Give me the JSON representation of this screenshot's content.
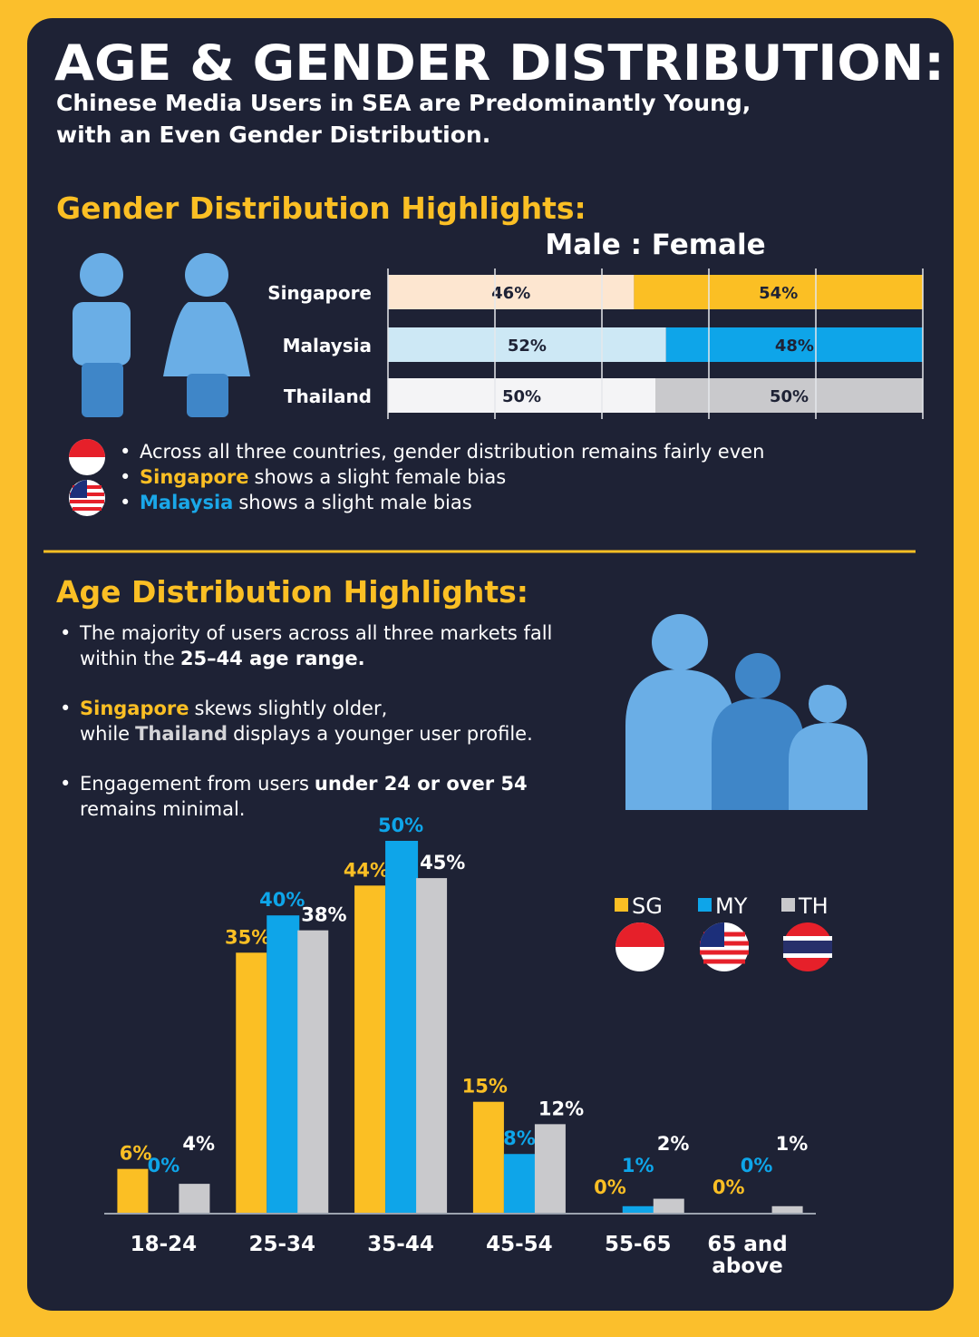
{
  "header": {
    "title": "AGE & GENDER DISTRIBUTION:",
    "subtitle": [
      "Chinese Media Users in SEA are Predominantly Young,",
      "with an Even Gender Distribution."
    ]
  },
  "gender_section": {
    "heading": "Gender Distribution Highlights:",
    "notes": [
      [
        [
          {
            "text": "Across all three countries, gender distribution remains fairly even"
          }
        ]
      ],
      [
        [
          {
            "text": "Singapore",
            "bold": true,
            "color": "#fbbf24"
          },
          {
            "text": "shows a slight female bias"
          }
        ]
      ],
      [
        [
          {
            "text": "Malaysia",
            "bold": true,
            "color": "#1aa7e8"
          },
          {
            "text": "shows a slight male bias"
          }
        ]
      ]
    ]
  },
  "age_section": {
    "heading": "Age Distribution Highlights:",
    "notes": [
      [
        [
          {
            "text": "The majority of users across all three markets fall"
          }
        ],
        [
          {
            "text": "within the"
          },
          {
            "text": "25–44 age range.",
            "bold": true
          }
        ]
      ],
      [
        [
          {
            "text": "Singapore",
            "bold": true,
            "color": "#fbbf24"
          },
          {
            "text": "skews slightly older,"
          }
        ],
        [
          {
            "text": "while"
          },
          {
            "text": "Thailand",
            "bold": true,
            "color": "#d4d4d8"
          },
          {
            "text": "displays a younger user profile."
          }
        ]
      ],
      [
        [
          {
            "text": "Engagement from users"
          },
          {
            "text": "under 24 or over 54",
            "bold": true
          }
        ],
        [
          {
            "text": "remains minimal."
          }
        ]
      ]
    ]
  },
  "chart_data": [
    {
      "type": "stacked-hbar",
      "title": "Male : Female",
      "categories": [
        "Singapore",
        "Malaysia",
        "Thailand"
      ],
      "series": [
        {
          "colors": [
            "#fde6d0",
            "#cde8f5",
            "#f4f4f6"
          ],
          "values": [
            46,
            52,
            50
          ],
          "value_labels": [
            "46%",
            "52%",
            "50%"
          ]
        },
        {
          "colors": [
            "#fbbf24",
            "#0ea5e9",
            "#c9c9cc"
          ],
          "values": [
            54,
            48,
            50
          ],
          "value_labels": [
            "54%",
            "48%",
            "50%"
          ]
        }
      ],
      "xlim": [
        0,
        100
      ],
      "xticks": [
        0,
        20,
        40,
        60,
        80,
        100
      ],
      "grid": true
    },
    {
      "type": "grouped-bar",
      "categories": [
        "18-24",
        "25-34",
        "35-44",
        "45-54",
        "55-65",
        "65 and above"
      ],
      "series": [
        {
          "name": "SG",
          "color": "#fbbf24",
          "values": [
            6,
            35,
            44,
            15,
            0,
            0
          ],
          "value_labels": [
            "6%",
            "35%",
            "44%",
            "15%",
            "0%",
            "0%"
          ]
        },
        {
          "name": "MY",
          "color": "#0ea5e9",
          "values": [
            0,
            40,
            50,
            8,
            1,
            0
          ],
          "value_labels": [
            "0%",
            "40%",
            "50%",
            "8%",
            "1%",
            "0%"
          ]
        },
        {
          "name": "TH",
          "color": "#c9c9cc",
          "values": [
            4,
            38,
            45,
            12,
            2,
            1
          ],
          "value_labels": [
            "4%",
            "38%",
            "45%",
            "12%",
            "2%",
            "1%"
          ]
        }
      ],
      "ylim": [
        0,
        50
      ],
      "legend": "right"
    }
  ]
}
